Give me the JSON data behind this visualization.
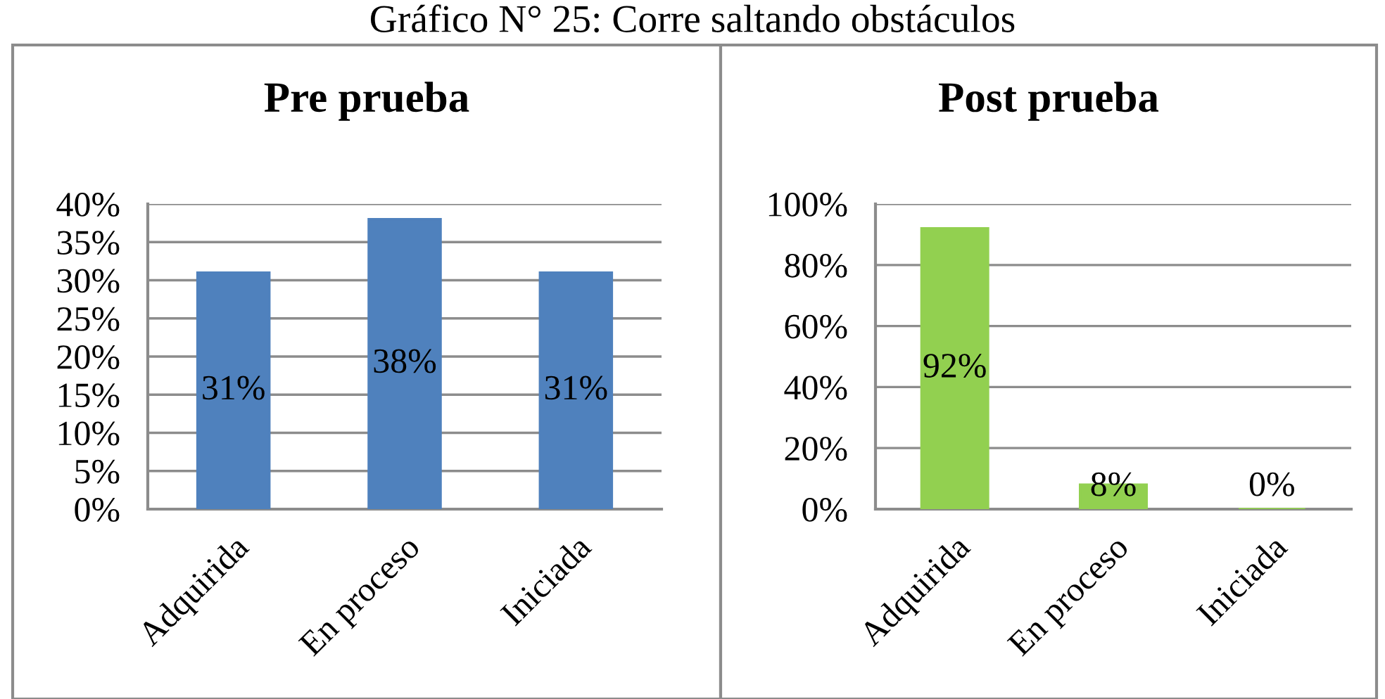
{
  "chart_data": [
    {
      "type": "other",
      "title": "Gráfico N° 25: Corre saltando obstáculos"
    },
    {
      "type": "bar",
      "title": "Pre prueba",
      "categories": [
        "Adquirida",
        "En proceso",
        "Iniciada"
      ],
      "values": [
        31,
        38,
        31
      ],
      "value_labels": [
        "31%",
        "38%",
        "31%"
      ],
      "color": "#4f81bd",
      "ylim": [
        0,
        40
      ],
      "yticks": [
        {
          "value": 0,
          "label": "0%"
        },
        {
          "value": 5,
          "label": "5%"
        },
        {
          "value": 10,
          "label": "10%"
        },
        {
          "value": 15,
          "label": "15%"
        },
        {
          "value": 20,
          "label": "20%"
        },
        {
          "value": 25,
          "label": "25%"
        },
        {
          "value": 30,
          "label": "30%"
        },
        {
          "value": 35,
          "label": "35%"
        },
        {
          "value": 40,
          "label": "40%"
        }
      ],
      "grid": "y"
    },
    {
      "type": "bar",
      "title": "Post prueba",
      "categories": [
        "Adquirida",
        "En proceso",
        "Iniciada"
      ],
      "values": [
        92,
        8,
        0
      ],
      "value_labels": [
        "92%",
        "8%",
        "0%"
      ],
      "color": "#92d050",
      "ylim": [
        0,
        100
      ],
      "yticks": [
        {
          "value": 0,
          "label": "0%"
        },
        {
          "value": 20,
          "label": "20%"
        },
        {
          "value": 40,
          "label": "40%"
        },
        {
          "value": 60,
          "label": "60%"
        },
        {
          "value": 80,
          "label": "80%"
        },
        {
          "value": 100,
          "label": "100%"
        }
      ],
      "grid": "y"
    }
  ]
}
